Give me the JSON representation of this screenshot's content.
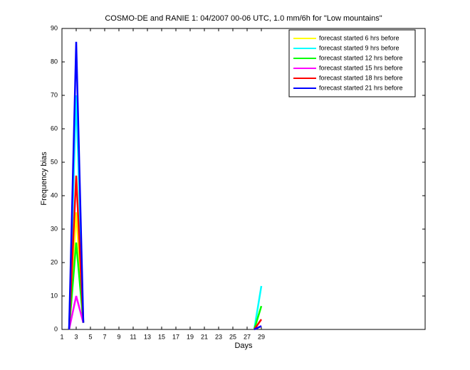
{
  "chart_data": {
    "type": "line",
    "title": "COSMO-DE and RANIE 1: 04/2007 00-06 UTC, 1.0 mm/6h for \"Low mountains\"",
    "xlabel": "Days",
    "ylabel": "Frequency bias",
    "x": [
      2,
      3,
      4,
      27,
      28,
      29
    ],
    "series": [
      {
        "name": "forecast started 6 hrs before",
        "color": "#ffff00",
        "values": [
          0,
          35,
          2,
          null,
          0,
          1
        ]
      },
      {
        "name": "forecast started 9 hrs before",
        "color": "#00ffff",
        "values": [
          0,
          70,
          2,
          null,
          0,
          13
        ]
      },
      {
        "name": "forecast started 12 hrs before",
        "color": "#00ff00",
        "values": [
          0,
          26,
          2,
          null,
          0,
          7
        ]
      },
      {
        "name": "forecast started 15 hrs before",
        "color": "#ff00ff",
        "values": [
          0,
          10,
          2,
          null,
          0,
          1
        ]
      },
      {
        "name": "forecast started 18 hrs before",
        "color": "#ff0000",
        "values": [
          0,
          46,
          2,
          null,
          0,
          3
        ]
      },
      {
        "name": "forecast started 21 hrs before",
        "color": "#0000ff",
        "values": [
          0,
          86,
          2,
          null,
          0,
          1
        ]
      }
    ],
    "xlim": [
      1,
      52
    ],
    "xticks": [
      1,
      3,
      5,
      7,
      9,
      11,
      13,
      15,
      17,
      19,
      21,
      23,
      25,
      27,
      29
    ],
    "ylim": [
      0,
      90
    ],
    "yticks": [
      0,
      10,
      20,
      30,
      40,
      50,
      60,
      70,
      80,
      90
    ],
    "legend": "upper right"
  }
}
